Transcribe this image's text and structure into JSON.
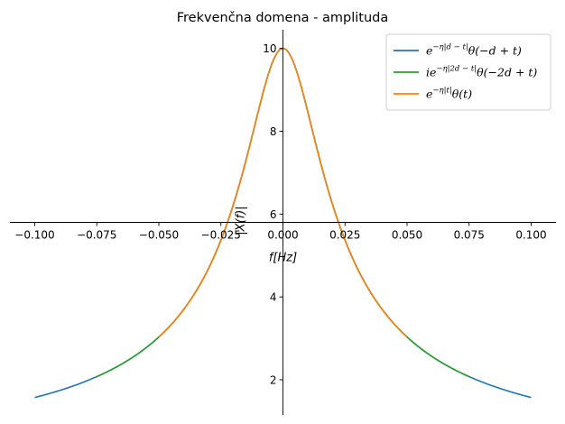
{
  "chart_data": {
    "type": "line",
    "title": "Frekvenčna domena - amplituda",
    "xlabel": "f[Hz]",
    "ylabel": "|X(f)|",
    "xlim": [
      -0.11,
      0.11
    ],
    "ylim": [
      1.15,
      10.45
    ],
    "x_ticks": [
      -0.1,
      -0.075,
      -0.05,
      -0.025,
      0.0,
      0.025,
      0.05,
      0.075,
      0.1
    ],
    "x_tick_labels": [
      "−0.100",
      "−0.075",
      "−0.050",
      "−0.025",
      "0.000",
      "0.025",
      "0.050",
      "0.075",
      "0.100"
    ],
    "y_ticks": [
      2,
      4,
      6,
      8,
      10
    ],
    "y_tick_labels": [
      "2",
      "4",
      "6",
      "8",
      "10"
    ],
    "axes_style": "centered spines crossing at x=0, y=5.8",
    "grid": false,
    "legend_placement": "top-right",
    "curve": {
      "formula": "1/sqrt(0.01 + (2*pi*f)^2)",
      "peak": 10.0,
      "value_at_f_0.1": 1.57
    },
    "series": [
      {
        "name": "e^{−η|d−t|}θ(−d+t)",
        "legend_main": "e",
        "legend_sup": "−η|d − t|",
        "legend_rest": "θ(−d + t)",
        "color": "#1f77b4",
        "x_range": [
          -0.1,
          0.1
        ]
      },
      {
        "name": "ie^{−η|2d−t|}θ(−2d+t)",
        "legend_main": "ie",
        "legend_sup": "−η|2d − t|",
        "legend_rest": "θ(−2d + t)",
        "color": "#2ca02c",
        "x_range": [
          -0.075,
          0.075
        ]
      },
      {
        "name": "e^{−η|t|}θ(t)",
        "legend_main": "e",
        "legend_sup": "−η|t|",
        "legend_rest": "θ(t)",
        "color": "#ff7f0e",
        "x_range": [
          -0.05,
          0.05
        ]
      }
    ]
  }
}
